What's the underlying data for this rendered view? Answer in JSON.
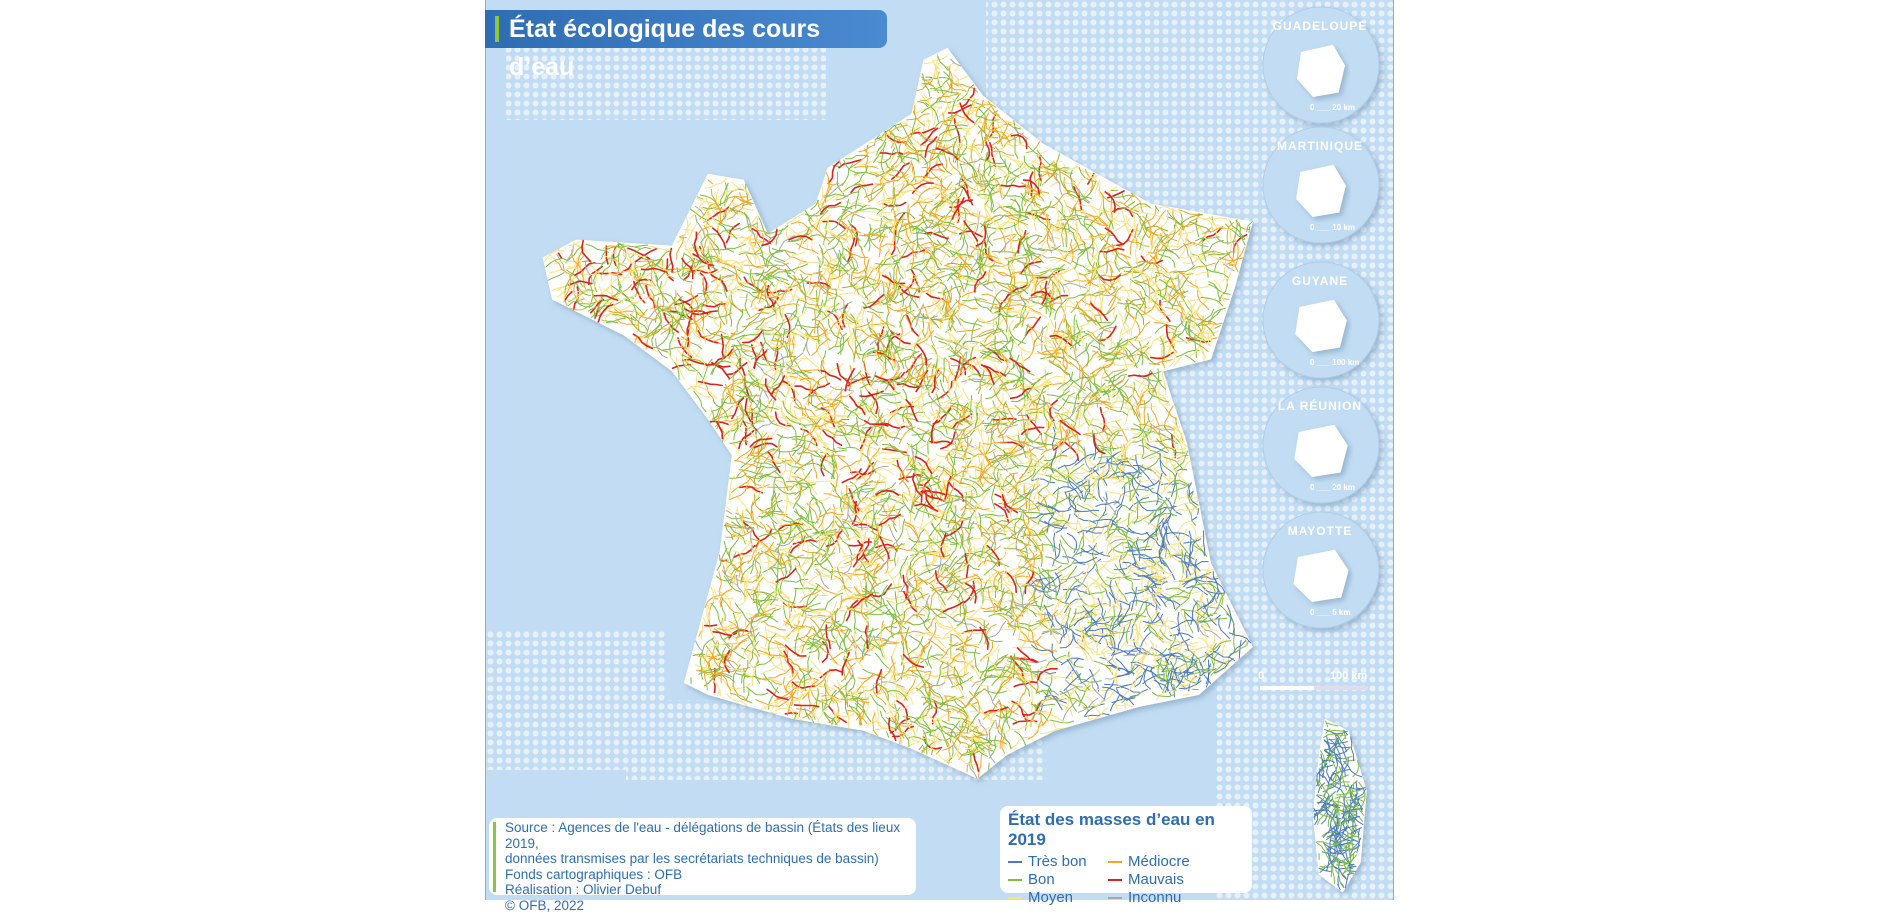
{
  "title": "État écologique des cours d’eau",
  "source": [
    "Source : Agences de l'eau - délégations de bassin (États des lieux 2019,",
    "données transmises par les secrétariats techniques de bassin)",
    "Fonds cartographiques : OFB",
    "Réalisation : Olivier Debuf",
    "© OFB, 2022"
  ],
  "legend": {
    "title": "État des masses d’eau en 2019",
    "items": [
      {
        "label": "Très bon",
        "color": "#4a78c8"
      },
      {
        "label": "Médiocre",
        "color": "#f5a623"
      },
      {
        "label": "Bon",
        "color": "#7cbf3c"
      },
      {
        "label": "Mauvais",
        "color": "#e0201b"
      },
      {
        "label": "Moyen",
        "color": "#fde27a"
      },
      {
        "label": "Inconnu",
        "color": "#a8a8a8"
      }
    ]
  },
  "scale": {
    "start": "0",
    "end": "100 km"
  },
  "insets": [
    {
      "name": "GUADELOUPE",
      "scale": "20 km"
    },
    {
      "name": "MARTINIQUE",
      "scale": "10 km"
    },
    {
      "name": "GUYANE",
      "scale": "100 km"
    },
    {
      "name": "LA RÉUNION",
      "scale": "20 km"
    },
    {
      "name": "MAYOTTE",
      "scale": "5 km"
    }
  ],
  "colors": {
    "sea": "#c2ddf3",
    "land": "#ffffff",
    "title_bg": "#2f6db3",
    "accent": "#8cc63f"
  }
}
